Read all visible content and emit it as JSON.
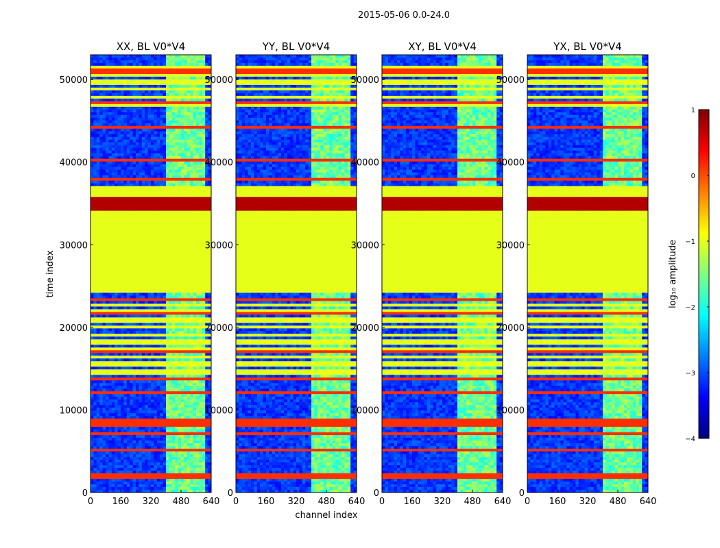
{
  "chart_data": {
    "type": "heatmap",
    "title": "2015-05-06 0.0-24.0",
    "xlabel": "channel index",
    "ylabel": "time index",
    "xlim": [
      0,
      640
    ],
    "ylim": [
      0,
      53000
    ],
    "xticks": [
      "0",
      "160",
      "320",
      "480",
      "640"
    ],
    "yticks": [
      "0",
      "10000",
      "20000",
      "30000",
      "40000",
      "50000"
    ],
    "panels": [
      {
        "title": "XX, BL V0*V4",
        "bright_channel_range": [
          405,
          600
        ]
      },
      {
        "title": "YY, BL V0*V4",
        "bright_channel_range": [
          405,
          600
        ]
      },
      {
        "title": "XY, BL V0*V4",
        "bright_channel_range": [
          405,
          600
        ]
      },
      {
        "title": "YX, BL V0*V4",
        "bright_channel_range": [
          405,
          600
        ]
      }
    ],
    "colorbar": {
      "label": "log₁₀ amplitude",
      "range": [
        -4,
        1
      ],
      "ticks": [
        "1",
        "0",
        "−1",
        "−2",
        "−3",
        "−4"
      ],
      "colormap": "jet",
      "colors": [
        "#00007f",
        "#0000ff",
        "#007fff",
        "#00ffff",
        "#7fff7f",
        "#ffff00",
        "#ff7f00",
        "#ff0000",
        "#7f0000"
      ]
    },
    "features": {
      "saturated_band_time": [
        34000,
        35700
      ],
      "flat_band_time": [
        24200,
        37000
      ],
      "flat_band_value": -1.0,
      "hot_rows_time": [
        2000,
        5000,
        7000,
        8000,
        8600,
        12200,
        13600,
        17200,
        21600,
        23400,
        37800,
        40200,
        44100,
        47200,
        51000
      ],
      "striped_time_ranges": [
        [
          13000,
          23000
        ],
        [
          46500,
          52500
        ]
      ]
    }
  }
}
